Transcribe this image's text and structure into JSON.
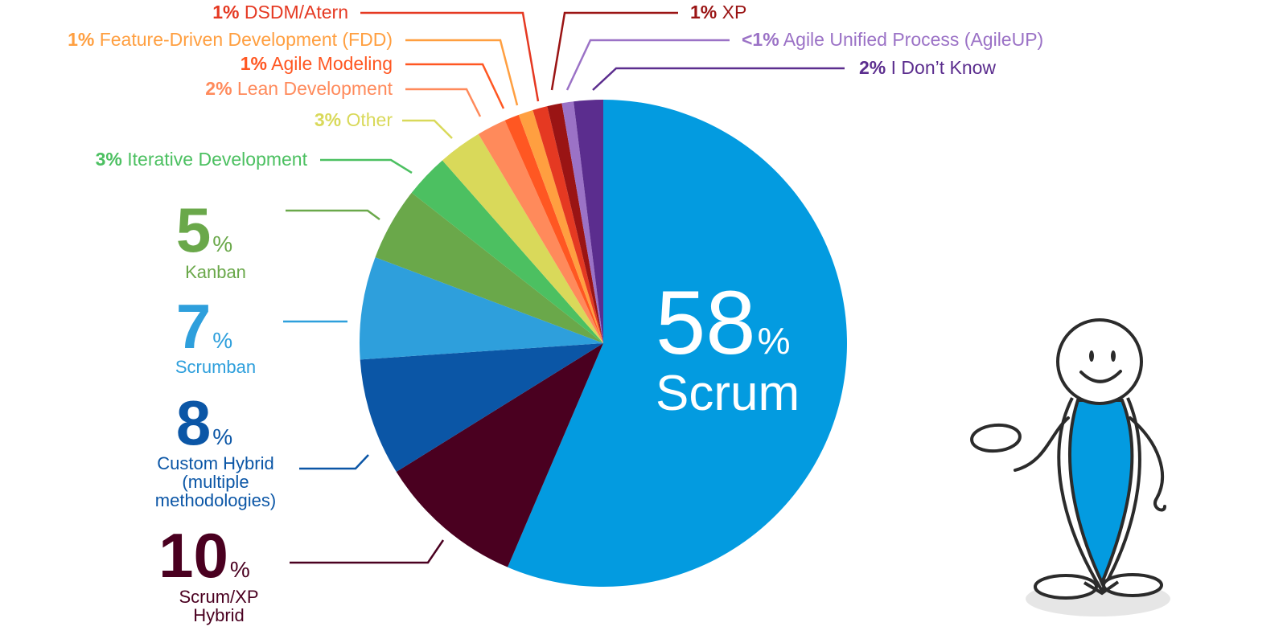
{
  "chart_data": {
    "type": "pie",
    "title": "",
    "slices": [
      {
        "label": "Scrum",
        "pct_text": "58",
        "value": 58,
        "color": "#039be0"
      },
      {
        "label": "Scrum/XP Hybrid",
        "label_lines": [
          "Scrum/XP",
          "Hybrid"
        ],
        "pct_text": "10",
        "value": 10,
        "color": "#4a0020"
      },
      {
        "label": "Custom Hybrid (multiple methodologies)",
        "label_lines": [
          "Custom Hybrid",
          "(multiple",
          "methodologies)"
        ],
        "pct_text": "8",
        "value": 8,
        "color": "#0b56a6"
      },
      {
        "label": "Scrumban",
        "label_lines": [
          "Scrumban"
        ],
        "pct_text": "7",
        "value": 7,
        "color": "#2e9fdc"
      },
      {
        "label": "Kanban",
        "label_lines": [
          "Kanban"
        ],
        "pct_text": "5",
        "value": 5,
        "color": "#6aa84a"
      },
      {
        "label": "Iterative Development",
        "pct_text": "3%",
        "value": 3,
        "color": "#4cc061"
      },
      {
        "label": "Other",
        "pct_text": "3%",
        "value": 3,
        "color": "#d9d95a"
      },
      {
        "label": "Lean Development",
        "pct_text": "2%",
        "value": 2,
        "color": "#ff8a5b"
      },
      {
        "label": "Agile Modeling",
        "pct_text": "1%",
        "value": 1,
        "color": "#ff5722"
      },
      {
        "label": "Feature-Driven Development (FDD)",
        "pct_text": "1%",
        "value": 1,
        "color": "#ff9f40"
      },
      {
        "label": "DSDM/Atern",
        "pct_text": "1%",
        "value": 1,
        "color": "#e53922"
      },
      {
        "label": "XP",
        "pct_text": "1%",
        "value": 1,
        "color": "#9a1414"
      },
      {
        "label": "Agile Unified Process (AgileUP)",
        "pct_text": "<1%",
        "value": 0.8,
        "color": "#9b72c6"
      },
      {
        "label": "I Don’t Know",
        "pct_text": "2%",
        "value": 2,
        "color": "#5b2d8e"
      }
    ],
    "percent_sign": "%"
  },
  "mascot": {
    "name": "stick-figure"
  }
}
